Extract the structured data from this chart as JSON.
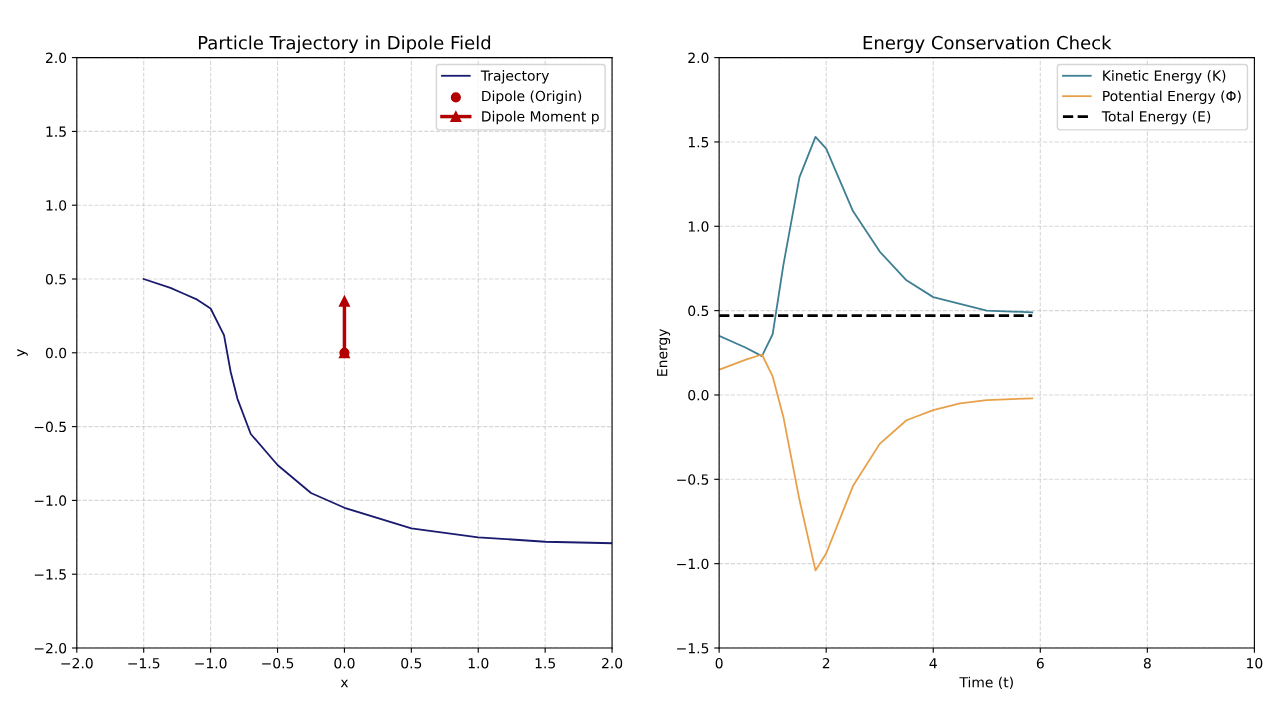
{
  "chart_data": [
    {
      "type": "line",
      "title": "Particle Trajectory in Dipole Field",
      "xlabel": "x",
      "ylabel": "y",
      "xlim": [
        -2.0,
        2.0
      ],
      "ylim": [
        -2.0,
        2.0
      ],
      "xticks": [
        {
          "value": -2.0,
          "label": "−2.0"
        },
        {
          "value": -1.5,
          "label": "−1.5"
        },
        {
          "value": -1.0,
          "label": "−1.0"
        },
        {
          "value": -0.5,
          "label": "−0.5"
        },
        {
          "value": 0.0,
          "label": "0.0"
        },
        {
          "value": 0.5,
          "label": "0.5"
        },
        {
          "value": 1.0,
          "label": "1.0"
        },
        {
          "value": 1.5,
          "label": "1.5"
        },
        {
          "value": 2.0,
          "label": "2.0"
        }
      ],
      "yticks": [
        {
          "value": -2.0,
          "label": "−2.0"
        },
        {
          "value": -1.5,
          "label": "−1.5"
        },
        {
          "value": -1.0,
          "label": "−1.0"
        },
        {
          "value": -0.5,
          "label": "−0.5"
        },
        {
          "value": 0.0,
          "label": "0.0"
        },
        {
          "value": 0.5,
          "label": "0.5"
        },
        {
          "value": 1.0,
          "label": "1.0"
        },
        {
          "value": 1.5,
          "label": "1.5"
        },
        {
          "value": 2.0,
          "label": "2.0"
        }
      ],
      "grid": true,
      "legend": "top right",
      "series": [
        {
          "name": "Trajectory",
          "type": "line",
          "color": "#1a1a6e",
          "x": [
            -1.5,
            -1.3,
            -1.2,
            -1.1,
            -1.0,
            -0.9,
            -0.85,
            -0.8,
            -0.7,
            -0.5,
            -0.25,
            0.0,
            0.5,
            1.0,
            1.5,
            2.0
          ],
          "values": [
            0.5,
            0.44,
            0.4,
            0.36,
            0.3,
            0.12,
            -0.13,
            -0.31,
            -0.55,
            -0.76,
            -0.95,
            -1.05,
            -1.19,
            -1.25,
            -1.28,
            -1.29
          ]
        },
        {
          "name": "Dipole (Origin)",
          "type": "scatter",
          "marker": "circle",
          "color": "#b30000",
          "x": [
            0.0
          ],
          "values": [
            0.0
          ]
        },
        {
          "name": "Dipole Moment p",
          "type": "line",
          "marker": "triangle",
          "line_style": "solid",
          "color": "#b30000",
          "x": [
            0.0,
            0.0
          ],
          "values": [
            0.0,
            0.35
          ]
        }
      ]
    },
    {
      "type": "line",
      "title": "Energy Conservation Check",
      "xlabel": "Time (t)",
      "ylabel": "Energy",
      "xlim": [
        0,
        10
      ],
      "ylim": [
        -1.5,
        2.0
      ],
      "xticks": [
        0,
        2,
        4,
        6,
        8,
        10
      ],
      "yticks": [
        {
          "value": -1.5,
          "label": "−1.5"
        },
        {
          "value": -1.0,
          "label": "−1.0"
        },
        {
          "value": -0.5,
          "label": "−0.5"
        },
        {
          "value": 0.0,
          "label": "0.0"
        },
        {
          "value": 0.5,
          "label": "0.5"
        },
        {
          "value": 1.0,
          "label": "1.0"
        },
        {
          "value": 1.5,
          "label": "1.5"
        },
        {
          "value": 2.0,
          "label": "2.0"
        }
      ],
      "grid": true,
      "legend": "top right",
      "series": [
        {
          "name": "Kinetic Energy (K)",
          "color": "#3f7f93",
          "line_style": "solid",
          "x": [
            0,
            0.5,
            0.8,
            1.0,
            1.2,
            1.5,
            1.8,
            2.0,
            2.5,
            3.0,
            3.5,
            4.0,
            4.5,
            5.0,
            5.85
          ],
          "values": [
            0.35,
            0.28,
            0.23,
            0.36,
            0.77,
            1.29,
            1.53,
            1.46,
            1.09,
            0.85,
            0.68,
            0.58,
            0.54,
            0.5,
            0.49
          ]
        },
        {
          "name": "Potential Energy (Φ)",
          "color": "#e8a14a",
          "line_style": "solid",
          "x": [
            0,
            0.5,
            0.8,
            1.0,
            1.2,
            1.5,
            1.8,
            2.0,
            2.5,
            3.0,
            3.5,
            4.0,
            4.5,
            5.0,
            5.85
          ],
          "values": [
            0.15,
            0.21,
            0.24,
            0.11,
            -0.13,
            -0.62,
            -1.04,
            -0.94,
            -0.54,
            -0.29,
            -0.15,
            -0.09,
            -0.05,
            -0.03,
            -0.02
          ]
        },
        {
          "name": "Total Energy (E)",
          "color": "#000000",
          "line_style": "dashed",
          "x": [
            0,
            5.85
          ],
          "values": [
            0.47,
            0.47
          ]
        }
      ]
    }
  ]
}
